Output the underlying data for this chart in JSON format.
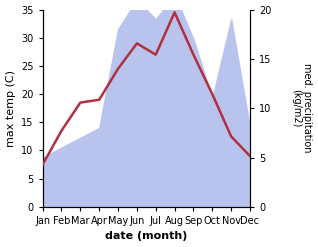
{
  "months": [
    "Jan",
    "Feb",
    "Mar",
    "Apr",
    "May",
    "Jun",
    "Jul",
    "Aug",
    "Sep",
    "Oct",
    "Nov",
    "Dec"
  ],
  "temperature": [
    7.5,
    13.5,
    18.5,
    19.0,
    24.5,
    29.0,
    27.0,
    34.5,
    27.0,
    20.0,
    12.5,
    9.0
  ],
  "precipitation": [
    5.0,
    6.0,
    7.0,
    8.0,
    18.0,
    21.0,
    19.0,
    21.5,
    17.0,
    11.0,
    19.0,
    8.0
  ],
  "temp_color": "#b03040",
  "precip_fill_color": "#b8c4ee",
  "temp_ylim": [
    0,
    35
  ],
  "precip_ylim": [
    0,
    20
  ],
  "temp_yticks": [
    0,
    5,
    10,
    15,
    20,
    25,
    30,
    35
  ],
  "precip_yticks": [
    0,
    5,
    10,
    15,
    20
  ],
  "xlabel": "date (month)",
  "ylabel_left": "max temp (C)",
  "ylabel_right": "med. precipitation\n(kg/m2)",
  "bg_color": "#ffffff",
  "line_width": 1.8
}
